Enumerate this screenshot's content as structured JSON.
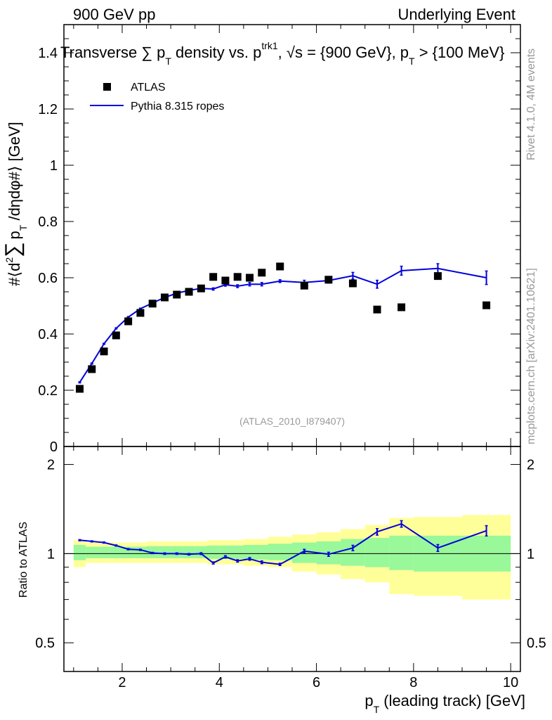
{
  "header": {
    "left": "900 GeV pp",
    "right": "Underlying Event"
  },
  "side_labels": {
    "rivet": "Rivet 4.1.0,  4M events",
    "mcplots": "mcplots.cern.ch [arXiv:2401.10621]"
  },
  "chart_data": {
    "type": "scatter",
    "title": "Transverse ∑ p_T density vs. p_T^trk1, √s = {900 GeV}, p_T > {100 MeV}",
    "title_parts": {
      "main": "Transverse ∑ p",
      "sub_T": "T",
      "mid": " density vs. p",
      "sup_trk1": "trk1",
      "rest1": ", √s = {900 GeV}, p",
      "rest2": " > {100 MeV}"
    },
    "ylabel": "#⟨d² ∑ p_T /dηdφ#⟩ [GeV]",
    "ylabel_parts": {
      "a": "#⟨d",
      "b": "2",
      "c": "∑",
      "d": "p",
      "e": "T",
      "f": " /dηdφ#⟩ [GeV]"
    },
    "xlabel": "p_T (leading track) [GeV]",
    "xlabel_parts": {
      "a": "p",
      "b": "T",
      "c": " (leading track) [GeV]"
    },
    "ratio_ylabel": "Ratio to ATLAS",
    "watermark": "(ATLAS_2010_I879407)",
    "xlim": [
      0.8,
      10.2
    ],
    "ylim": [
      0,
      1.5
    ],
    "ratio_ylim": [
      0.4,
      2.3
    ],
    "x_ticks": [
      2,
      4,
      6,
      8,
      10
    ],
    "y_ticks": [
      0,
      0.2,
      0.4,
      0.6,
      0.8,
      1,
      1.2,
      1.4
    ],
    "y_tick_labels": [
      "0",
      "0.2",
      "0.4",
      "0.6",
      "0.8",
      "1",
      "1.2",
      "1.4"
    ],
    "ratio_ticks": [
      0.5,
      1,
      2
    ],
    "ratio_tick_labels": [
      "0.5",
      "1",
      "2"
    ],
    "legend": [
      {
        "name": "ATLAS",
        "marker": "square",
        "color": "#000000"
      },
      {
        "name": "Pythia 8.315 ropes",
        "marker": "line",
        "color": "#0000dd"
      }
    ],
    "atlas": {
      "name": "ATLAS",
      "x": [
        1.125,
        1.375,
        1.625,
        1.875,
        2.125,
        2.375,
        2.625,
        2.875,
        3.125,
        3.375,
        3.625,
        3.875,
        4.125,
        4.375,
        4.625,
        4.875,
        5.25,
        5.75,
        6.25,
        6.75,
        7.25,
        7.75,
        8.5,
        9.5
      ],
      "y": [
        0.205,
        0.275,
        0.338,
        0.395,
        0.445,
        0.475,
        0.508,
        0.53,
        0.54,
        0.55,
        0.562,
        0.603,
        0.59,
        0.603,
        0.6,
        0.618,
        0.64,
        0.572,
        0.593,
        0.58,
        0.487,
        0.495,
        0.606,
        0.502
      ],
      "bin_edges": [
        1.0,
        1.25,
        1.5,
        1.75,
        2.0,
        2.25,
        2.5,
        2.75,
        3.0,
        3.25,
        3.5,
        3.75,
        4.0,
        4.25,
        4.5,
        4.75,
        5.0,
        5.5,
        6.0,
        6.5,
        7.0,
        7.5,
        8.0,
        9.0,
        10.0
      ]
    },
    "pythia": {
      "name": "Pythia 8.315 ropes",
      "y": [
        0.228,
        0.295,
        0.365,
        0.42,
        0.46,
        0.49,
        0.51,
        0.53,
        0.545,
        0.555,
        0.562,
        0.56,
        0.575,
        0.57,
        0.577,
        0.577,
        0.588,
        0.583,
        0.59,
        0.607,
        0.577,
        0.625,
        0.633,
        0.6
      ],
      "err": [
        0.002,
        0.002,
        0.002,
        0.002,
        0.002,
        0.002,
        0.002,
        0.003,
        0.003,
        0.003,
        0.004,
        0.004,
        0.005,
        0.005,
        0.006,
        0.006,
        0.005,
        0.008,
        0.009,
        0.012,
        0.014,
        0.016,
        0.017,
        0.024
      ]
    },
    "ratio": {
      "values": [
        1.11,
        1.1,
        1.09,
        1.065,
        1.035,
        1.03,
        1.005,
        1.0,
        1.0,
        0.995,
        1.0,
        0.93,
        0.975,
        0.945,
        0.96,
        0.935,
        0.92,
        1.02,
        0.995,
        1.045,
        1.185,
        1.26,
        1.045,
        1.195
      ],
      "err": [
        0.005,
        0.005,
        0.005,
        0.005,
        0.005,
        0.005,
        0.005,
        0.006,
        0.006,
        0.006,
        0.007,
        0.008,
        0.009,
        0.009,
        0.01,
        0.01,
        0.008,
        0.014,
        0.016,
        0.022,
        0.03,
        0.032,
        0.028,
        0.048
      ],
      "band_inner": [
        [
          0.95,
          1.07
        ],
        [
          0.965,
          1.055
        ],
        [
          0.965,
          1.055
        ],
        [
          0.965,
          1.055
        ],
        [
          0.965,
          1.055
        ],
        [
          0.965,
          1.055
        ],
        [
          0.965,
          1.06
        ],
        [
          0.965,
          1.06
        ],
        [
          0.965,
          1.06
        ],
        [
          0.965,
          1.06
        ],
        [
          0.965,
          1.06
        ],
        [
          0.96,
          1.065
        ],
        [
          0.96,
          1.065
        ],
        [
          0.96,
          1.065
        ],
        [
          0.955,
          1.07
        ],
        [
          0.955,
          1.07
        ],
        [
          0.95,
          1.08
        ],
        [
          0.93,
          1.09
        ],
        [
          0.92,
          1.1
        ],
        [
          0.91,
          1.12
        ],
        [
          0.9,
          1.13
        ],
        [
          0.88,
          1.15
        ],
        [
          0.87,
          1.15
        ],
        [
          0.87,
          1.15
        ]
      ],
      "band_outer": [
        [
          0.9,
          1.11
        ],
        [
          0.93,
          1.09
        ],
        [
          0.93,
          1.09
        ],
        [
          0.93,
          1.09
        ],
        [
          0.93,
          1.09
        ],
        [
          0.93,
          1.09
        ],
        [
          0.93,
          1.1
        ],
        [
          0.93,
          1.1
        ],
        [
          0.93,
          1.1
        ],
        [
          0.93,
          1.1
        ],
        [
          0.93,
          1.1
        ],
        [
          0.92,
          1.11
        ],
        [
          0.92,
          1.11
        ],
        [
          0.92,
          1.11
        ],
        [
          0.91,
          1.12
        ],
        [
          0.91,
          1.12
        ],
        [
          0.9,
          1.14
        ],
        [
          0.87,
          1.16
        ],
        [
          0.85,
          1.18
        ],
        [
          0.82,
          1.21
        ],
        [
          0.8,
          1.25
        ],
        [
          0.73,
          1.32
        ],
        [
          0.72,
          1.33
        ],
        [
          0.7,
          1.35
        ]
      ]
    }
  }
}
